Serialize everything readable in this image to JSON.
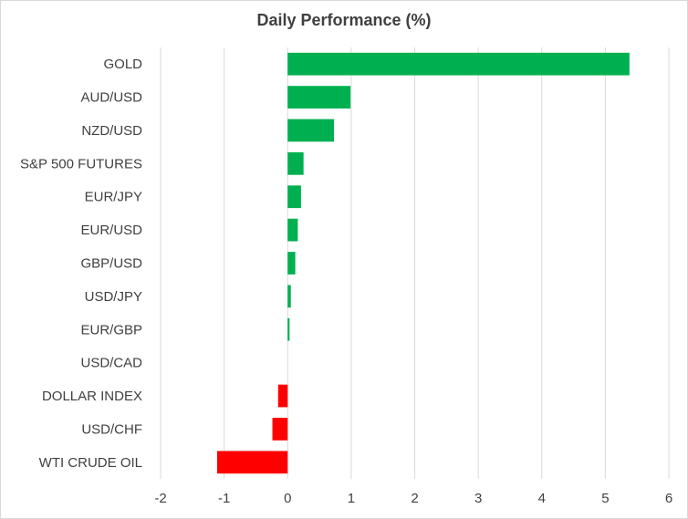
{
  "chart_data": {
    "type": "bar",
    "orientation": "horizontal",
    "title": "Daily Performance (%)",
    "xlabel": "",
    "ylabel": "",
    "categories": [
      "GOLD",
      "AUD/USD",
      "NZD/USD",
      "S&P 500 FUTURES",
      "EUR/JPY",
      "EUR/USD",
      "GBP/USD",
      "USD/JPY",
      "EUR/GBP",
      "USD/CAD",
      "DOLLAR INDEX",
      "USD/CHF",
      "WTI CRUDE OIL"
    ],
    "values": [
      5.38,
      0.99,
      0.73,
      0.25,
      0.21,
      0.16,
      0.12,
      0.05,
      0.03,
      0.0,
      -0.15,
      -0.24,
      -1.11
    ],
    "xlim": [
      -2,
      6
    ],
    "xticks": [
      "-2",
      "-1",
      "0",
      "1",
      "2",
      "3",
      "4",
      "5",
      "6"
    ],
    "grid": "vertical",
    "legend": "none",
    "colors": {
      "positive": "#00b050",
      "negative": "#ff0000",
      "grid": "#d9d9d9",
      "text": "#404040"
    }
  }
}
